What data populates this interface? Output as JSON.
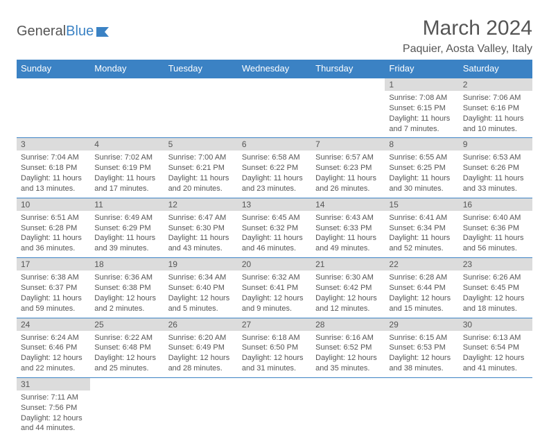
{
  "brand": {
    "name1": "General",
    "name2": "Blue"
  },
  "title": "March 2024",
  "location": "Paquier, Aosta Valley, Italy",
  "colors": {
    "accent": "#3b82c4",
    "headerBg": "#3b82c4",
    "dayNumBg": "#dcdcdc",
    "text": "#555555",
    "white": "#ffffff"
  },
  "weekdays": [
    "Sunday",
    "Monday",
    "Tuesday",
    "Wednesday",
    "Thursday",
    "Friday",
    "Saturday"
  ],
  "weeks": [
    [
      {
        "empty": true
      },
      {
        "empty": true
      },
      {
        "empty": true
      },
      {
        "empty": true
      },
      {
        "empty": true
      },
      {
        "day": "1",
        "sunrise": "Sunrise: 7:08 AM",
        "sunset": "Sunset: 6:15 PM",
        "daylight": "Daylight: 11 hours and 7 minutes."
      },
      {
        "day": "2",
        "sunrise": "Sunrise: 7:06 AM",
        "sunset": "Sunset: 6:16 PM",
        "daylight": "Daylight: 11 hours and 10 minutes."
      }
    ],
    [
      {
        "day": "3",
        "sunrise": "Sunrise: 7:04 AM",
        "sunset": "Sunset: 6:18 PM",
        "daylight": "Daylight: 11 hours and 13 minutes."
      },
      {
        "day": "4",
        "sunrise": "Sunrise: 7:02 AM",
        "sunset": "Sunset: 6:19 PM",
        "daylight": "Daylight: 11 hours and 17 minutes."
      },
      {
        "day": "5",
        "sunrise": "Sunrise: 7:00 AM",
        "sunset": "Sunset: 6:21 PM",
        "daylight": "Daylight: 11 hours and 20 minutes."
      },
      {
        "day": "6",
        "sunrise": "Sunrise: 6:58 AM",
        "sunset": "Sunset: 6:22 PM",
        "daylight": "Daylight: 11 hours and 23 minutes."
      },
      {
        "day": "7",
        "sunrise": "Sunrise: 6:57 AM",
        "sunset": "Sunset: 6:23 PM",
        "daylight": "Daylight: 11 hours and 26 minutes."
      },
      {
        "day": "8",
        "sunrise": "Sunrise: 6:55 AM",
        "sunset": "Sunset: 6:25 PM",
        "daylight": "Daylight: 11 hours and 30 minutes."
      },
      {
        "day": "9",
        "sunrise": "Sunrise: 6:53 AM",
        "sunset": "Sunset: 6:26 PM",
        "daylight": "Daylight: 11 hours and 33 minutes."
      }
    ],
    [
      {
        "day": "10",
        "sunrise": "Sunrise: 6:51 AM",
        "sunset": "Sunset: 6:28 PM",
        "daylight": "Daylight: 11 hours and 36 minutes."
      },
      {
        "day": "11",
        "sunrise": "Sunrise: 6:49 AM",
        "sunset": "Sunset: 6:29 PM",
        "daylight": "Daylight: 11 hours and 39 minutes."
      },
      {
        "day": "12",
        "sunrise": "Sunrise: 6:47 AM",
        "sunset": "Sunset: 6:30 PM",
        "daylight": "Daylight: 11 hours and 43 minutes."
      },
      {
        "day": "13",
        "sunrise": "Sunrise: 6:45 AM",
        "sunset": "Sunset: 6:32 PM",
        "daylight": "Daylight: 11 hours and 46 minutes."
      },
      {
        "day": "14",
        "sunrise": "Sunrise: 6:43 AM",
        "sunset": "Sunset: 6:33 PM",
        "daylight": "Daylight: 11 hours and 49 minutes."
      },
      {
        "day": "15",
        "sunrise": "Sunrise: 6:41 AM",
        "sunset": "Sunset: 6:34 PM",
        "daylight": "Daylight: 11 hours and 52 minutes."
      },
      {
        "day": "16",
        "sunrise": "Sunrise: 6:40 AM",
        "sunset": "Sunset: 6:36 PM",
        "daylight": "Daylight: 11 hours and 56 minutes."
      }
    ],
    [
      {
        "day": "17",
        "sunrise": "Sunrise: 6:38 AM",
        "sunset": "Sunset: 6:37 PM",
        "daylight": "Daylight: 11 hours and 59 minutes."
      },
      {
        "day": "18",
        "sunrise": "Sunrise: 6:36 AM",
        "sunset": "Sunset: 6:38 PM",
        "daylight": "Daylight: 12 hours and 2 minutes."
      },
      {
        "day": "19",
        "sunrise": "Sunrise: 6:34 AM",
        "sunset": "Sunset: 6:40 PM",
        "daylight": "Daylight: 12 hours and 5 minutes."
      },
      {
        "day": "20",
        "sunrise": "Sunrise: 6:32 AM",
        "sunset": "Sunset: 6:41 PM",
        "daylight": "Daylight: 12 hours and 9 minutes."
      },
      {
        "day": "21",
        "sunrise": "Sunrise: 6:30 AM",
        "sunset": "Sunset: 6:42 PM",
        "daylight": "Daylight: 12 hours and 12 minutes."
      },
      {
        "day": "22",
        "sunrise": "Sunrise: 6:28 AM",
        "sunset": "Sunset: 6:44 PM",
        "daylight": "Daylight: 12 hours and 15 minutes."
      },
      {
        "day": "23",
        "sunrise": "Sunrise: 6:26 AM",
        "sunset": "Sunset: 6:45 PM",
        "daylight": "Daylight: 12 hours and 18 minutes."
      }
    ],
    [
      {
        "day": "24",
        "sunrise": "Sunrise: 6:24 AM",
        "sunset": "Sunset: 6:46 PM",
        "daylight": "Daylight: 12 hours and 22 minutes."
      },
      {
        "day": "25",
        "sunrise": "Sunrise: 6:22 AM",
        "sunset": "Sunset: 6:48 PM",
        "daylight": "Daylight: 12 hours and 25 minutes."
      },
      {
        "day": "26",
        "sunrise": "Sunrise: 6:20 AM",
        "sunset": "Sunset: 6:49 PM",
        "daylight": "Daylight: 12 hours and 28 minutes."
      },
      {
        "day": "27",
        "sunrise": "Sunrise: 6:18 AM",
        "sunset": "Sunset: 6:50 PM",
        "daylight": "Daylight: 12 hours and 31 minutes."
      },
      {
        "day": "28",
        "sunrise": "Sunrise: 6:16 AM",
        "sunset": "Sunset: 6:52 PM",
        "daylight": "Daylight: 12 hours and 35 minutes."
      },
      {
        "day": "29",
        "sunrise": "Sunrise: 6:15 AM",
        "sunset": "Sunset: 6:53 PM",
        "daylight": "Daylight: 12 hours and 38 minutes."
      },
      {
        "day": "30",
        "sunrise": "Sunrise: 6:13 AM",
        "sunset": "Sunset: 6:54 PM",
        "daylight": "Daylight: 12 hours and 41 minutes."
      }
    ],
    [
      {
        "day": "31",
        "sunrise": "Sunrise: 7:11 AM",
        "sunset": "Sunset: 7:56 PM",
        "daylight": "Daylight: 12 hours and 44 minutes."
      },
      {
        "empty": true
      },
      {
        "empty": true
      },
      {
        "empty": true
      },
      {
        "empty": true
      },
      {
        "empty": true
      },
      {
        "empty": true
      }
    ]
  ]
}
